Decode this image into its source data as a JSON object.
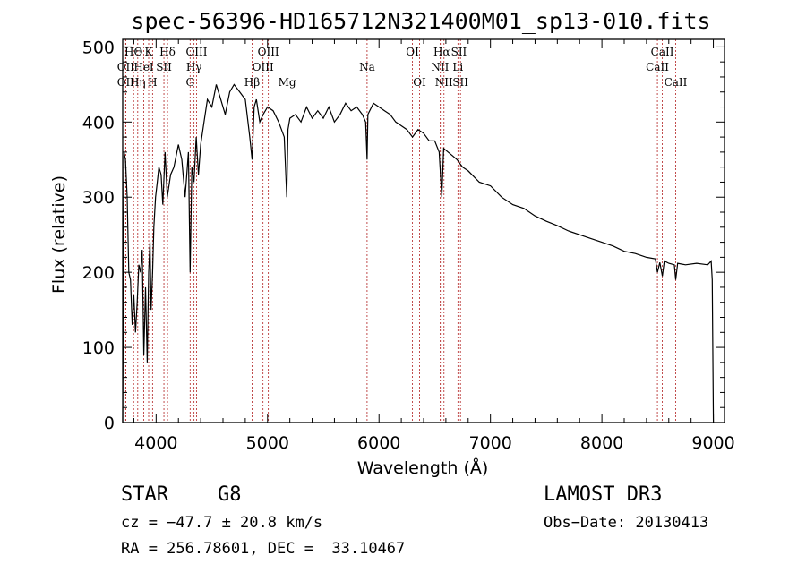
{
  "chart_data": {
    "type": "line",
    "title": "spec-56396-HD165712N321400M01_sp13-010.fits",
    "xlabel": "Wavelength (Å)",
    "ylabel": "Flux (relative)",
    "xlim": [
      3700,
      9100
    ],
    "ylim": [
      0,
      510
    ],
    "xticks": [
      4000,
      5000,
      6000,
      7000,
      8000,
      9000
    ],
    "yticks": [
      0,
      100,
      200,
      300,
      400,
      500
    ],
    "series": [
      {
        "name": "flux",
        "x": [
          3700,
          3712,
          3725,
          3740,
          3755,
          3770,
          3785,
          3800,
          3815,
          3830,
          3845,
          3860,
          3875,
          3890,
          3905,
          3920,
          3933,
          3945,
          3955,
          3968,
          3980,
          3995,
          4010,
          4025,
          4045,
          4060,
          4080,
          4100,
          4130,
          4160,
          4200,
          4230,
          4260,
          4290,
          4305,
          4320,
          4340,
          4360,
          4380,
          4400,
          4430,
          4460,
          4500,
          4540,
          4580,
          4620,
          4660,
          4700,
          4750,
          4800,
          4840,
          4861,
          4880,
          4900,
          4930,
          4960,
          5000,
          5050,
          5100,
          5150,
          5172,
          5183,
          5200,
          5250,
          5300,
          5350,
          5400,
          5450,
          5500,
          5550,
          5600,
          5650,
          5700,
          5750,
          5800,
          5850,
          5880,
          5893,
          5900,
          5950,
          6000,
          6050,
          6100,
          6150,
          6200,
          6250,
          6300,
          6350,
          6400,
          6450,
          6500,
          6540,
          6563,
          6580,
          6620,
          6660,
          6700,
          6750,
          6800,
          6900,
          7000,
          7100,
          7200,
          7300,
          7400,
          7500,
          7600,
          7700,
          7800,
          7900,
          8000,
          8100,
          8200,
          8300,
          8400,
          8480,
          8498,
          8520,
          8542,
          8560,
          8600,
          8650,
          8662,
          8680,
          8750,
          8850,
          8950,
          8980,
          8990,
          9000
        ],
        "values": [
          0,
          360,
          350,
          300,
          200,
          190,
          130,
          170,
          120,
          160,
          210,
          200,
          230,
          90,
          180,
          80,
          200,
          240,
          150,
          200,
          260,
          300,
          320,
          340,
          330,
          290,
          360,
          300,
          330,
          340,
          370,
          350,
          300,
          360,
          200,
          340,
          320,
          380,
          330,
          370,
          400,
          430,
          420,
          450,
          430,
          410,
          440,
          450,
          440,
          430,
          380,
          350,
          420,
          430,
          400,
          410,
          420,
          415,
          400,
          380,
          300,
          390,
          405,
          410,
          400,
          420,
          405,
          415,
          405,
          420,
          400,
          410,
          425,
          415,
          420,
          410,
          400,
          350,
          410,
          425,
          420,
          415,
          410,
          400,
          395,
          390,
          380,
          390,
          385,
          375,
          375,
          360,
          300,
          365,
          360,
          355,
          350,
          340,
          335,
          320,
          315,
          300,
          290,
          285,
          275,
          268,
          262,
          255,
          250,
          245,
          240,
          235,
          228,
          225,
          220,
          218,
          200,
          213,
          195,
          215,
          212,
          210,
          190,
          212,
          210,
          212,
          210,
          215,
          190,
          0
        ]
      }
    ],
    "line_markers": [
      {
        "label": "HΘ",
        "x": 3798,
        "row": 0
      },
      {
        "label": "K",
        "x": 3933,
        "row": 0
      },
      {
        "label": "Hδ",
        "x": 4102,
        "row": 0
      },
      {
        "label": "OIII",
        "x": 4363,
        "row": 0
      },
      {
        "label": "OIII",
        "x": 5007,
        "row": 0
      },
      {
        "label": "OI",
        "x": 6300,
        "row": 0
      },
      {
        "label": "Hα",
        "x": 6563,
        "row": 0
      },
      {
        "label": "SII",
        "x": 6717,
        "row": 0
      },
      {
        "label": "CaII",
        "x": 8542,
        "row": 0
      },
      {
        "label": "OII",
        "x": 3727,
        "row": 1
      },
      {
        "label": "HeI",
        "x": 3889,
        "row": 1
      },
      {
        "label": "SII",
        "x": 4070,
        "row": 1
      },
      {
        "label": "Hγ",
        "x": 4340,
        "row": 1
      },
      {
        "label": "OIII",
        "x": 4959,
        "row": 1
      },
      {
        "label": "Na",
        "x": 5893,
        "row": 1
      },
      {
        "label": "NII",
        "x": 6548,
        "row": 1
      },
      {
        "label": "Li",
        "x": 6708,
        "row": 1
      },
      {
        "label": "CaII",
        "x": 8498,
        "row": 1
      },
      {
        "label": "OII",
        "x": 3727,
        "row": 2
      },
      {
        "label": "Hη",
        "x": 3835,
        "row": 2
      },
      {
        "label": "H",
        "x": 3968,
        "row": 2
      },
      {
        "label": "G",
        "x": 4305,
        "row": 2
      },
      {
        "label": "Hβ",
        "x": 4861,
        "row": 2
      },
      {
        "label": "Mg",
        "x": 5175,
        "row": 2
      },
      {
        "label": "OI",
        "x": 6364,
        "row": 2
      },
      {
        "label": "NII",
        "x": 6583,
        "row": 2
      },
      {
        "label": "SII",
        "x": 6731,
        "row": 2
      },
      {
        "label": "CaII",
        "x": 8662,
        "row": 2
      }
    ]
  },
  "info": {
    "object_type": "STAR",
    "subclass": "G8",
    "survey": "LAMOST DR3",
    "cz": "cz = −47.7 ± 20.8 km/s",
    "obs_date": "Obs−Date: 20130413",
    "coords": "RA = 256.78601, DEC =  33.10467"
  }
}
